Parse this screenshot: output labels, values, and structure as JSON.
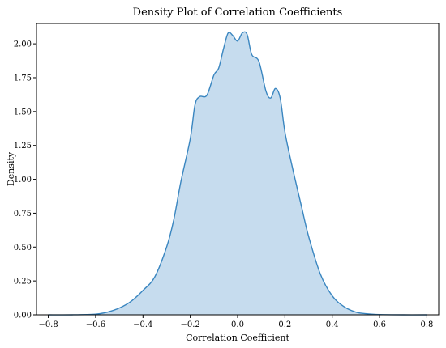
{
  "chart_data": {
    "type": "area",
    "title": "Density Plot of Correlation Coefficients",
    "xlabel": "Correlation Coefficient",
    "ylabel": "Density",
    "xlim": [
      -0.85,
      0.85
    ],
    "ylim": [
      0,
      2.15
    ],
    "xticks": [
      "−0.8",
      "−0.6",
      "−0.4",
      "−0.2",
      "0.0",
      "0.2",
      "0.4",
      "0.6",
      "0.8"
    ],
    "xtick_values": [
      -0.8,
      -0.6,
      -0.4,
      -0.2,
      0.0,
      0.2,
      0.4,
      0.6,
      0.8
    ],
    "yticks": [
      "0.00",
      "0.25",
      "0.50",
      "0.75",
      "1.00",
      "1.25",
      "1.50",
      "1.75",
      "2.00"
    ],
    "ytick_values": [
      0,
      0.25,
      0.5,
      0.75,
      1.0,
      1.25,
      1.5,
      1.75,
      2.0
    ],
    "grid": false,
    "series": [
      {
        "color": "#3a86c0",
        "fill": "#c6dcee",
        "x": [
          -0.8,
          -0.7,
          -0.6,
          -0.55,
          -0.5,
          -0.45,
          -0.4,
          -0.35,
          -0.3,
          -0.27,
          -0.24,
          -0.2,
          -0.18,
          -0.16,
          -0.13,
          -0.1,
          -0.08,
          -0.06,
          -0.04,
          -0.02,
          0.0,
          0.02,
          0.04,
          0.06,
          0.09,
          0.12,
          0.14,
          0.16,
          0.18,
          0.2,
          0.23,
          0.27,
          0.3,
          0.35,
          0.4,
          0.45,
          0.5,
          0.55,
          0.6,
          0.7,
          0.8
        ],
        "y": [
          0.0,
          0.0,
          0.005,
          0.02,
          0.05,
          0.1,
          0.18,
          0.28,
          0.5,
          0.7,
          0.98,
          1.3,
          1.55,
          1.61,
          1.62,
          1.77,
          1.82,
          1.96,
          2.08,
          2.06,
          2.02,
          2.08,
          2.07,
          1.92,
          1.87,
          1.65,
          1.6,
          1.67,
          1.6,
          1.35,
          1.1,
          0.8,
          0.58,
          0.3,
          0.14,
          0.06,
          0.02,
          0.007,
          0.002,
          0.0,
          0.0
        ]
      }
    ]
  }
}
